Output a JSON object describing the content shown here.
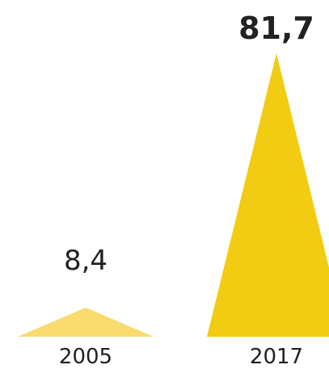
{
  "chart_data": {
    "type": "bar",
    "mark_shape": "triangle",
    "categories": [
      "2005",
      "2017"
    ],
    "values": [
      8.4,
      81.7
    ],
    "value_labels": [
      "8,4",
      "81,7"
    ],
    "emphasized_value_label": "81,7",
    "colors": [
      "#F8DC70",
      "#F2CC12"
    ],
    "title": "",
    "xlabel": "",
    "ylabel": "",
    "ylim": [
      0,
      81.7
    ],
    "grid": false,
    "legend": "none"
  }
}
